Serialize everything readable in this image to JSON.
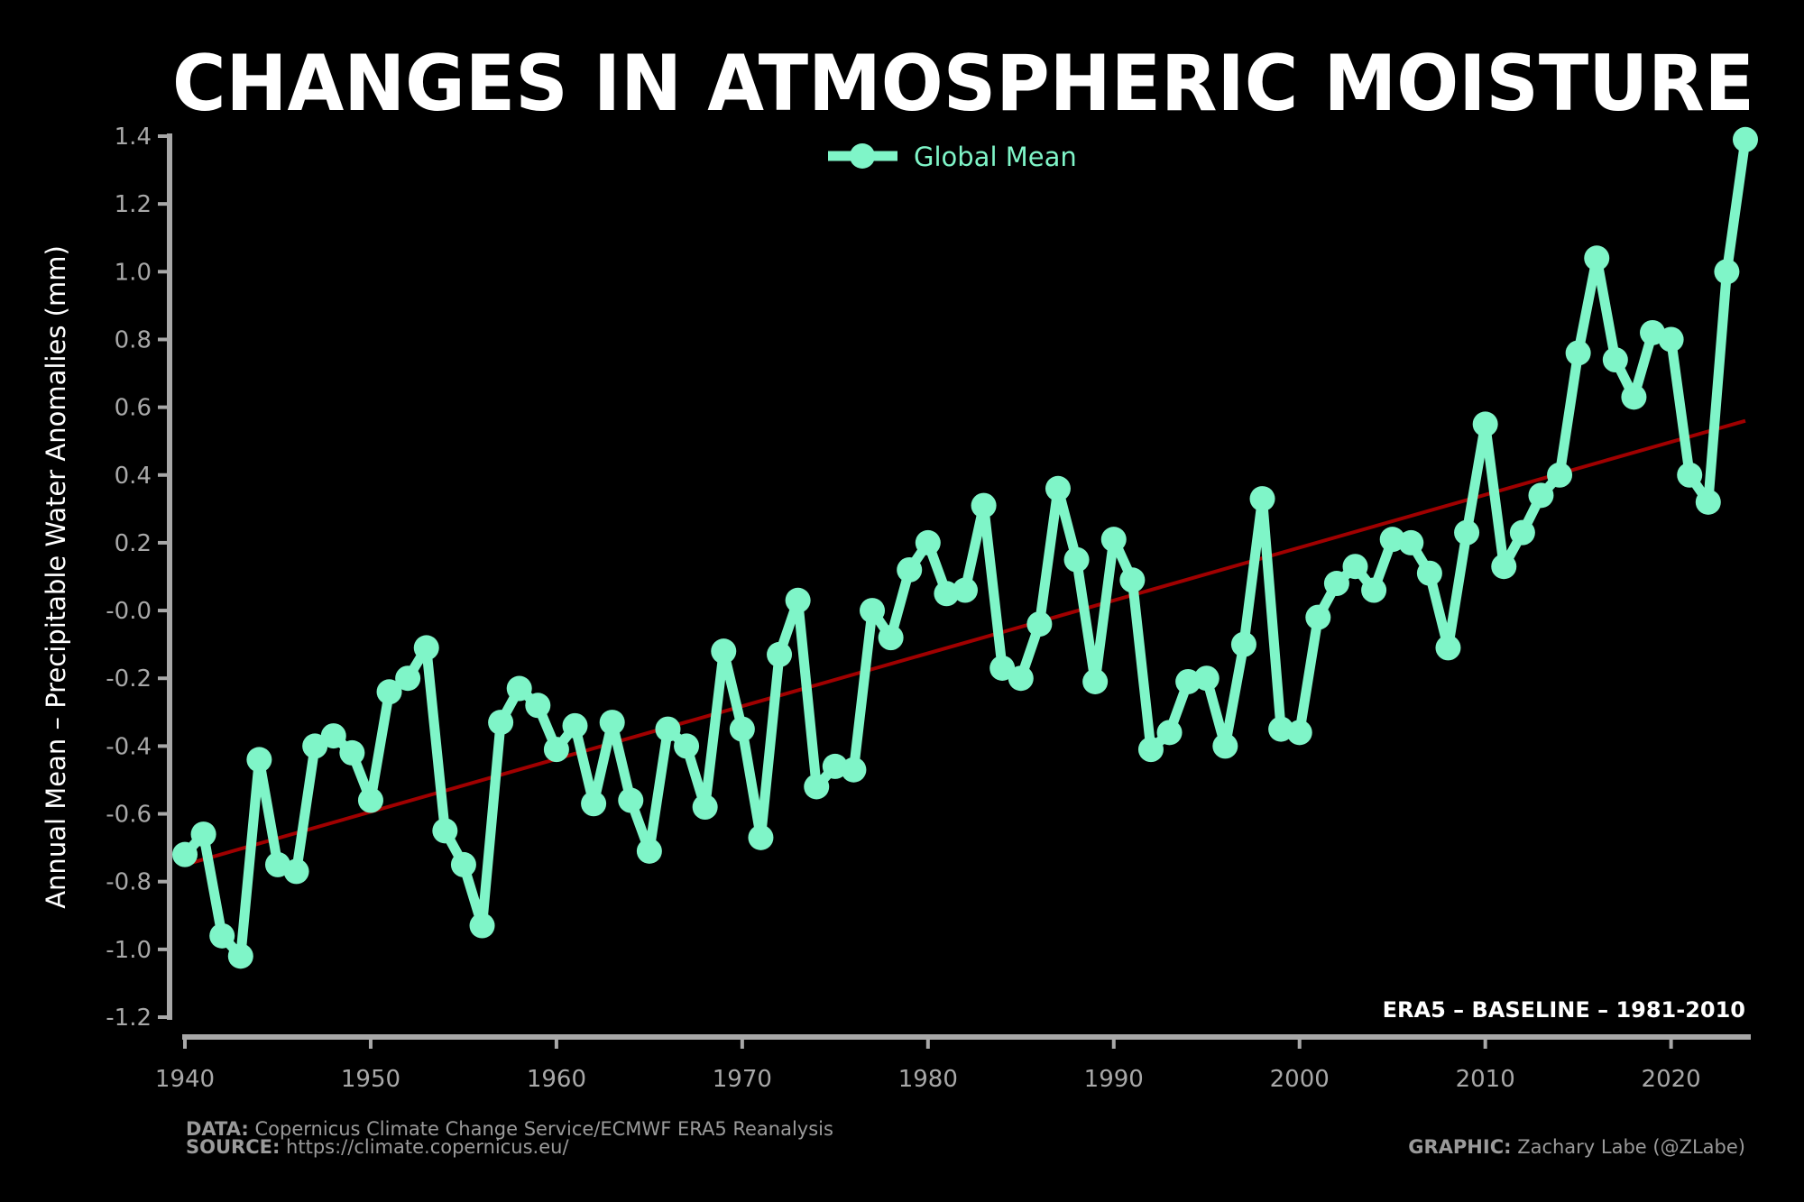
{
  "chart_data": {
    "type": "line",
    "title": "CHANGES IN ATMOSPHERIC MOISTURE",
    "ylabel": "Annual Mean – Precipitable Water Anomalies (mm)",
    "xlabel": "",
    "xlim": [
      1940,
      2024
    ],
    "ylim": [
      -1.2,
      1.4
    ],
    "xticks": [
      1940,
      1950,
      1960,
      1970,
      1980,
      1990,
      2000,
      2010,
      2020
    ],
    "yticks": [
      -1.2,
      -1.0,
      -0.8,
      -0.6,
      -0.4,
      -0.2,
      0.0,
      0.2,
      0.4,
      0.6,
      0.8,
      1.0,
      1.2,
      1.4
    ],
    "ytick_labels": [
      "-1.2",
      "-1.0",
      "-0.8",
      "-0.6",
      "-0.4",
      "-0.2",
      "-0.0",
      "0.2",
      "0.4",
      "0.6",
      "0.8",
      "1.0",
      "1.2",
      "1.4"
    ],
    "grid": false,
    "legend": {
      "position": "top-center",
      "entries": [
        "Global Mean"
      ]
    },
    "annotation": "ERA5 – BASELINE – 1981-2010",
    "series": [
      {
        "name": "Global Mean",
        "color": "#7ff5c8",
        "x_start": 1940,
        "values": [
          -0.72,
          -0.66,
          -0.96,
          -1.02,
          -0.44,
          -0.75,
          -0.77,
          -0.4,
          -0.37,
          -0.42,
          -0.56,
          -0.24,
          -0.2,
          -0.11,
          -0.65,
          -0.75,
          -0.93,
          -0.33,
          -0.23,
          -0.28,
          -0.41,
          -0.34,
          -0.57,
          -0.33,
          -0.56,
          -0.71,
          -0.35,
          -0.4,
          -0.58,
          -0.12,
          -0.35,
          -0.67,
          -0.13,
          0.03,
          -0.52,
          -0.46,
          -0.47,
          0.0,
          -0.08,
          0.12,
          0.2,
          0.05,
          0.06,
          0.31,
          -0.17,
          -0.2,
          -0.04,
          0.36,
          0.15,
          -0.21,
          0.21,
          0.09,
          -0.41,
          -0.36,
          -0.21,
          -0.2,
          -0.4,
          -0.1,
          0.33,
          -0.35,
          -0.36,
          -0.02,
          0.08,
          0.13,
          0.06,
          0.21,
          0.2,
          0.11,
          -0.11,
          0.23,
          0.55,
          0.13,
          0.23,
          0.34,
          0.4,
          0.76,
          1.04,
          0.74,
          0.63,
          0.82,
          0.8,
          0.4,
          0.32,
          1.0,
          1.39
        ]
      }
    ],
    "trend": {
      "color": "#a00000",
      "x": [
        1940,
        2024
      ],
      "y": [
        -0.75,
        0.56
      ]
    }
  },
  "footer": {
    "data_label": "DATA:",
    "data_text": "Copernicus Climate Change Service/ECMWF ERA5 Reanalysis",
    "source_label": "SOURCE:",
    "source_text": "https://climate.copernicus.eu/",
    "graphic_label": "GRAPHIC:",
    "graphic_text": "Zachary Labe (@ZLabe)"
  }
}
